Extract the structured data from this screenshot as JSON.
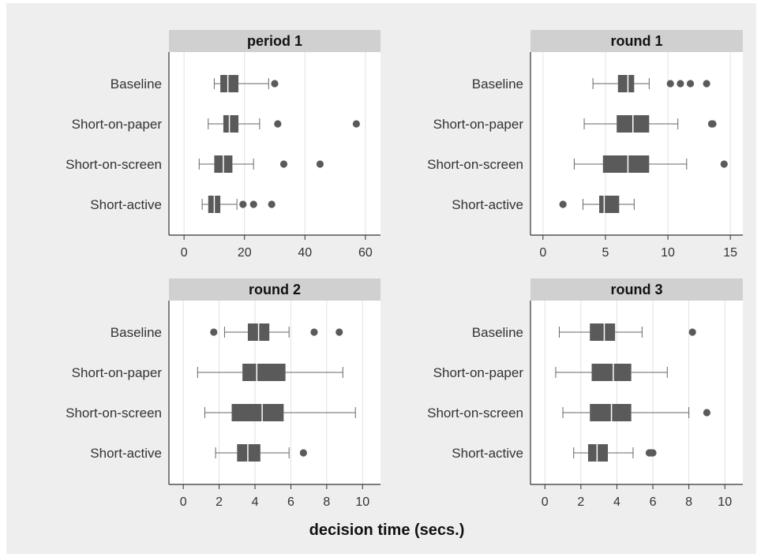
{
  "chart_data": {
    "type": "boxplot",
    "xlabel": "decision time (secs.)",
    "colors": {
      "box": "#5a5a5a",
      "whisker": "#666666",
      "strip": "#d0d0d0",
      "outer_bg": "#eeeeee",
      "grid": "#e2e2e2"
    },
    "categories": [
      "Baseline",
      "Short-on-paper",
      "Short-on-screen",
      "Short-active"
    ],
    "panels": [
      {
        "title": "period 1",
        "xlim": [
          -5,
          65
        ],
        "xticks": [
          0,
          20,
          40,
          60
        ],
        "xtick_labels": [
          "0",
          "20",
          "40",
          "60"
        ],
        "boxes": [
          {
            "category": "Baseline",
            "whisker_low": 10.0,
            "q1": 12.0,
            "median": 14.5,
            "q3": 18.0,
            "whisker_high": 28.0,
            "outliers": [
              30.0
            ]
          },
          {
            "category": "Short-on-paper",
            "whisker_low": 8.0,
            "q1": 13.0,
            "median": 15.0,
            "q3": 18.0,
            "whisker_high": 25.0,
            "outliers": [
              31.0,
              57.0
            ]
          },
          {
            "category": "Short-on-screen",
            "whisker_low": 5.0,
            "q1": 10.0,
            "median": 13.0,
            "q3": 16.0,
            "whisker_high": 23.0,
            "outliers": [
              33.0,
              45.0
            ]
          },
          {
            "category": "Short-active",
            "whisker_low": 6.0,
            "q1": 8.0,
            "median": 10.0,
            "q3": 12.0,
            "whisker_high": 17.5,
            "outliers": [
              19.5,
              23.0,
              29.0
            ]
          }
        ]
      },
      {
        "title": "round 1",
        "xlim": [
          -1,
          16
        ],
        "xticks": [
          0,
          5,
          10,
          15
        ],
        "xtick_labels": [
          "0",
          "5",
          "10",
          "15"
        ],
        "boxes": [
          {
            "category": "Baseline",
            "whisker_low": 4.0,
            "q1": 6.0,
            "median": 6.8,
            "q3": 7.3,
            "whisker_high": 8.5,
            "outliers": [
              10.2,
              11.0,
              11.8,
              13.1
            ]
          },
          {
            "category": "Short-on-paper",
            "whisker_low": 3.3,
            "q1": 5.9,
            "median": 7.2,
            "q3": 8.5,
            "whisker_high": 10.8,
            "outliers": [
              13.5,
              13.6
            ]
          },
          {
            "category": "Short-on-screen",
            "whisker_low": 2.5,
            "q1": 4.8,
            "median": 6.8,
            "q3": 8.5,
            "whisker_high": 11.5,
            "outliers": [
              14.5
            ]
          },
          {
            "category": "Short-active",
            "whisker_low": 3.2,
            "q1": 4.5,
            "median": 4.9,
            "q3": 6.1,
            "whisker_high": 7.3,
            "outliers": [
              1.6
            ]
          }
        ]
      },
      {
        "title": "round 2",
        "xlim": [
          -0.8,
          11.0
        ],
        "xticks": [
          0,
          2,
          4,
          6,
          8,
          10
        ],
        "xtick_labels": [
          "0",
          "2",
          "4",
          "6",
          "8",
          "10"
        ],
        "boxes": [
          {
            "category": "Baseline",
            "whisker_low": 2.3,
            "q1": 3.6,
            "median": 4.2,
            "q3": 4.8,
            "whisker_high": 5.9,
            "outliers": [
              1.7,
              7.3,
              8.7
            ]
          },
          {
            "category": "Short-on-paper",
            "whisker_low": 0.8,
            "q1": 3.3,
            "median": 4.1,
            "q3": 5.7,
            "whisker_high": 8.9,
            "outliers": []
          },
          {
            "category": "Short-on-screen",
            "whisker_low": 1.2,
            "q1": 2.7,
            "median": 4.4,
            "q3": 5.6,
            "whisker_high": 9.6,
            "outliers": []
          },
          {
            "category": "Short-active",
            "whisker_low": 1.8,
            "q1": 3.0,
            "median": 3.6,
            "q3": 4.3,
            "whisker_high": 5.9,
            "outliers": [
              6.7
            ]
          }
        ]
      },
      {
        "title": "round 3",
        "xlim": [
          -0.8,
          11.0
        ],
        "xticks": [
          0,
          2,
          4,
          6,
          8,
          10
        ],
        "xtick_labels": [
          "0",
          "2",
          "4",
          "6",
          "8",
          "10"
        ],
        "boxes": [
          {
            "category": "Baseline",
            "whisker_low": 0.8,
            "q1": 2.5,
            "median": 3.3,
            "q3": 3.9,
            "whisker_high": 5.4,
            "outliers": [
              8.2
            ]
          },
          {
            "category": "Short-on-paper",
            "whisker_low": 0.6,
            "q1": 2.6,
            "median": 3.8,
            "q3": 4.8,
            "whisker_high": 6.8,
            "outliers": []
          },
          {
            "category": "Short-on-screen",
            "whisker_low": 1.0,
            "q1": 2.5,
            "median": 3.7,
            "q3": 4.8,
            "whisker_high": 8.0,
            "outliers": [
              9.0
            ]
          },
          {
            "category": "Short-active",
            "whisker_low": 1.6,
            "q1": 2.4,
            "median": 2.9,
            "q3": 3.5,
            "whisker_high": 4.9,
            "outliers": [
              5.8,
              5.9,
              6.0
            ]
          }
        ]
      }
    ]
  }
}
